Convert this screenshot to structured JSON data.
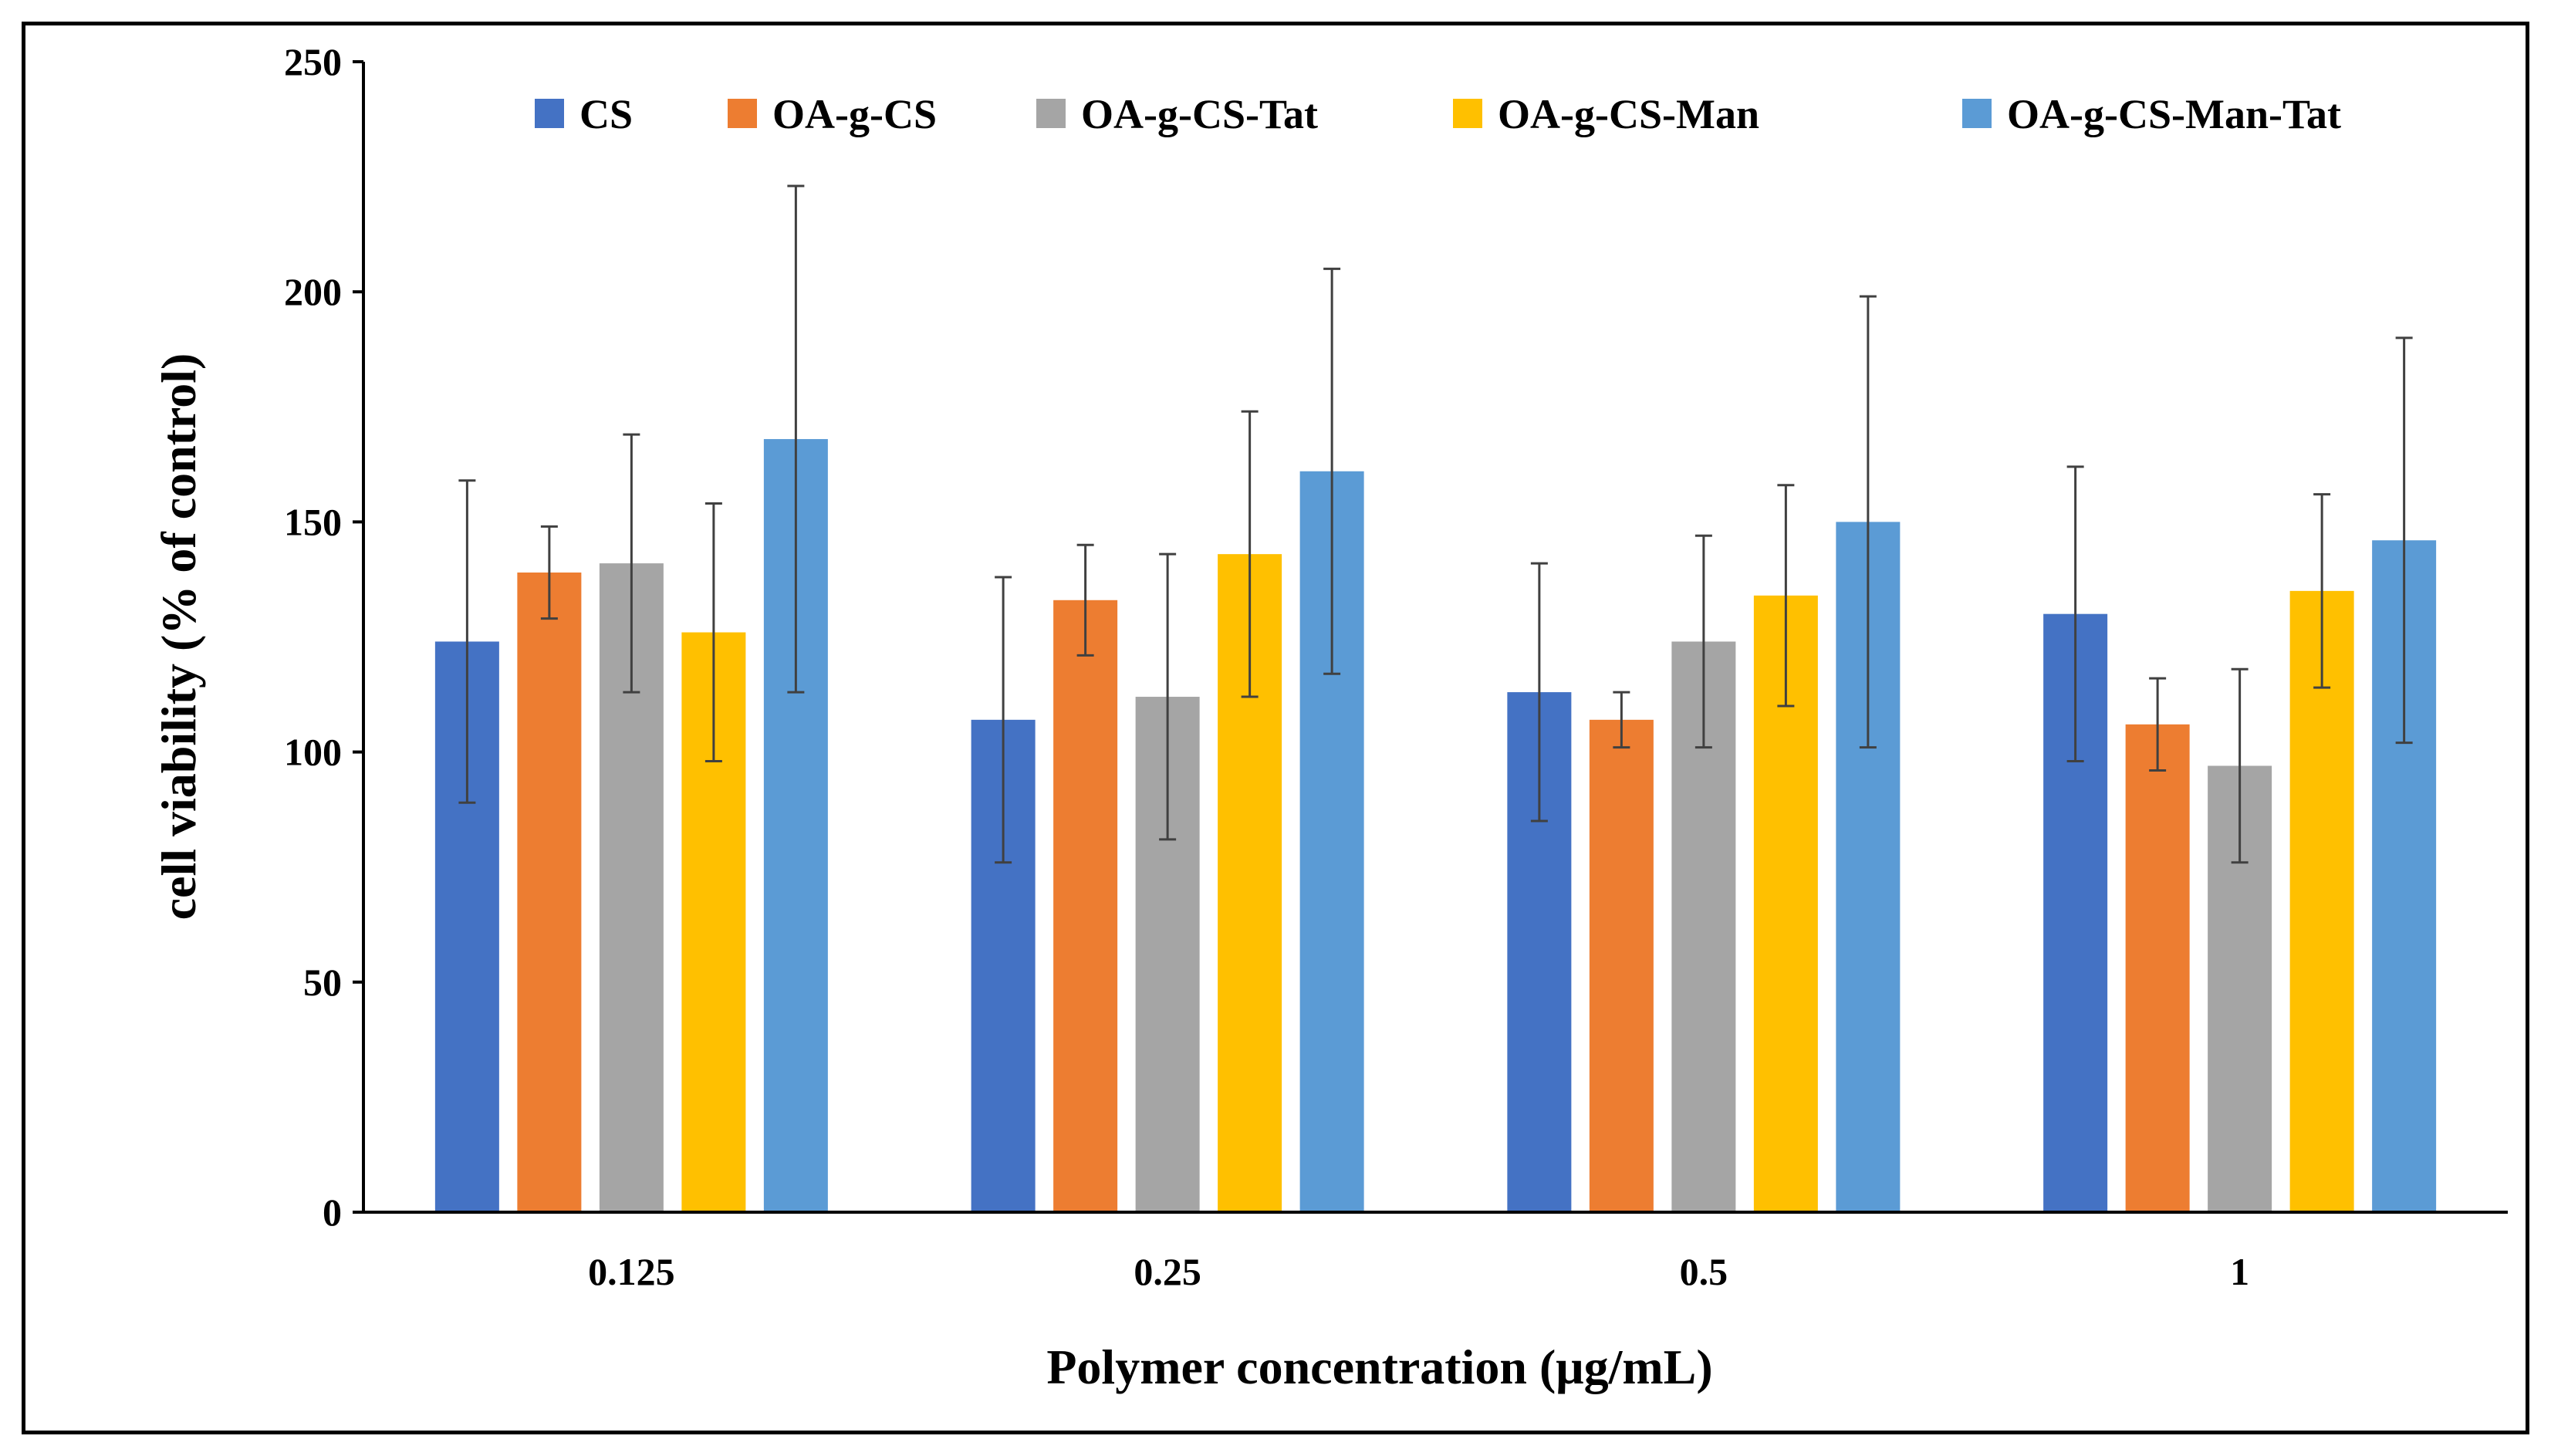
{
  "chart_data": {
    "type": "bar",
    "title": "",
    "xlabel": "Polymer concentration (μg/mL)",
    "ylabel": "cell viability  (% of control)",
    "ylim": [
      0,
      250
    ],
    "yticks": [
      0,
      50,
      100,
      150,
      200,
      250
    ],
    "ytick_labels": [
      "0",
      "50",
      "100",
      "150",
      "200",
      "250"
    ],
    "grid": false,
    "legend_position": "top",
    "categories": [
      "0.125",
      "0.25",
      "0.5",
      "1"
    ],
    "series": [
      {
        "name": "CS",
        "color": "#4472C4",
        "values": [
          124,
          107,
          113,
          130
        ],
        "errors": [
          35,
          31,
          28,
          32
        ]
      },
      {
        "name": "OA-g-CS",
        "color": "#ED7D31",
        "values": [
          139,
          133,
          107,
          106
        ],
        "errors": [
          10,
          12,
          6,
          10
        ]
      },
      {
        "name": "OA-g-CS-Tat",
        "color": "#A5A5A5",
        "values": [
          141,
          112,
          124,
          97
        ],
        "errors": [
          28,
          31,
          23,
          21
        ]
      },
      {
        "name": "OA-g-CS-Man",
        "color": "#FFC000",
        "values": [
          126,
          143,
          134,
          135
        ],
        "errors": [
          28,
          31,
          24,
          21
        ]
      },
      {
        "name": "OA-g-CS-Man-Tat",
        "color": "#5B9BD5",
        "values": [
          168,
          161,
          150,
          146
        ],
        "errors": [
          55,
          44,
          49,
          44
        ]
      }
    ]
  }
}
